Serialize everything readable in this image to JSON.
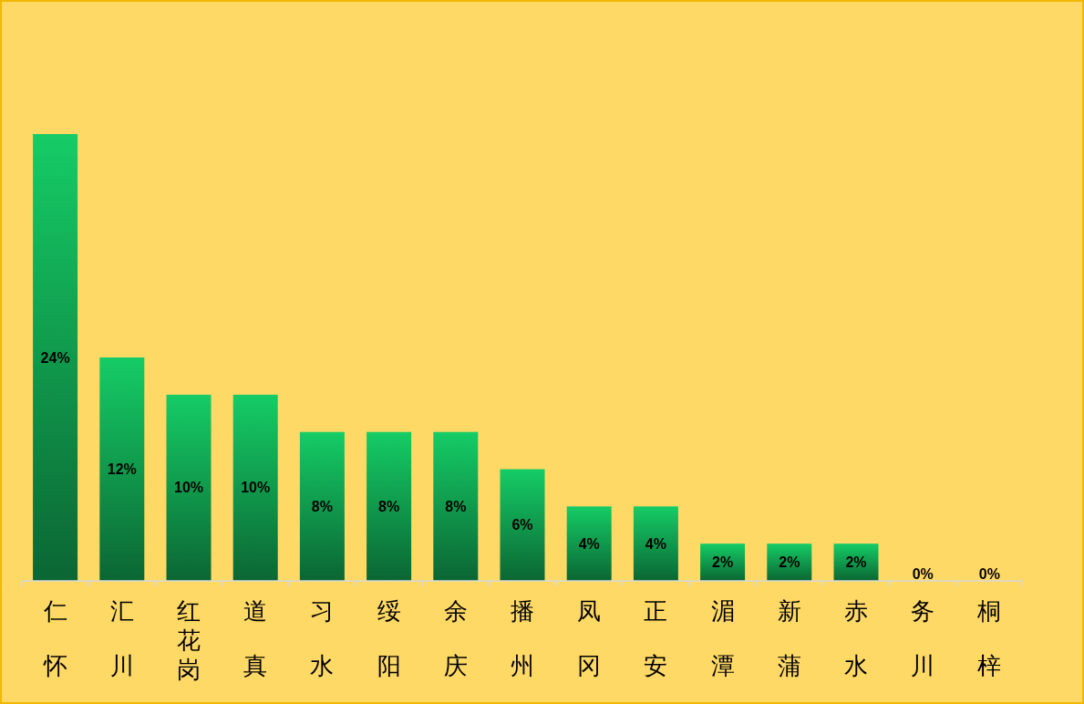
{
  "chart_data": {
    "type": "bar",
    "categories": [
      "仁怀",
      "汇川",
      "红花岗",
      "道真",
      "习水",
      "绥阳",
      "余庆",
      "播州",
      "凤冈",
      "正安",
      "湄潭",
      "新蒲",
      "赤水",
      "务川",
      "桐梓"
    ],
    "values": [
      24,
      12,
      10,
      10,
      8,
      8,
      8,
      6,
      4,
      4,
      2,
      2,
      2,
      0,
      0
    ],
    "value_labels": [
      "24%",
      "12%",
      "10%",
      "10%",
      "8%",
      "8%",
      "8%",
      "6%",
      "4%",
      "4%",
      "2%",
      "2%",
      "2%",
      "0%",
      "0%"
    ],
    "color": "#15cc66"
  }
}
